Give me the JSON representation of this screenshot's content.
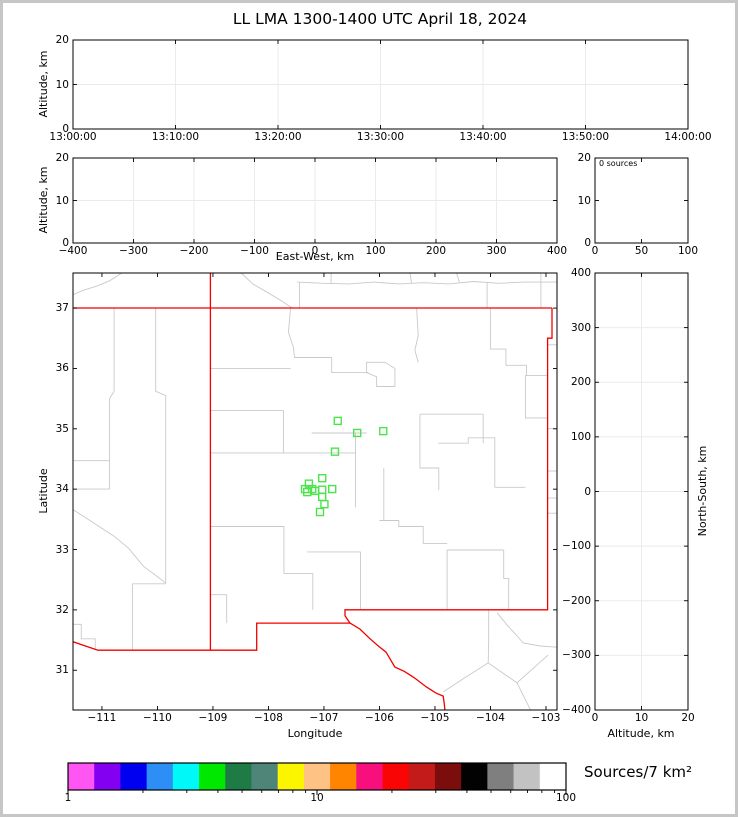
{
  "title": "LL LMA 1300-1400 UTC April 18, 2024",
  "panels": {
    "time_height": {
      "ylabel": "Altitude, km",
      "xtick_labels": [
        "13:00:00",
        "13:10:00",
        "13:20:00",
        "13:30:00",
        "13:40:00",
        "13:50:00",
        "14:00:00"
      ],
      "ytick_labels": [
        "0",
        "10",
        "20"
      ]
    },
    "ew_height": {
      "xlabel": "East-West, km",
      "ylabel": "Altitude, km",
      "xtick_labels": [
        "−400",
        "−300",
        "−200",
        "−100",
        "0",
        "100",
        "200",
        "300",
        "400"
      ],
      "ytick_labels": [
        "0",
        "10",
        "20"
      ]
    },
    "alt_histogram": {
      "annotation": "0 sources",
      "xtick_labels": [
        "0",
        "50",
        "100"
      ],
      "ytick_labels": [
        "0",
        "10",
        "20"
      ]
    },
    "map": {
      "xlabel": "Longitude",
      "ylabel": "Latitude",
      "xtick_labels": [
        "−111",
        "−110",
        "−109",
        "−108",
        "−107",
        "−106",
        "−105",
        "−104",
        "−103"
      ],
      "ytick_labels": [
        "31",
        "32",
        "33",
        "34",
        "35",
        "36",
        "37"
      ]
    },
    "ns_height": {
      "xlabel": "Altitude, km",
      "ylabel": "North-South, km",
      "xtick_labels": [
        "0",
        "10",
        "20"
      ],
      "ytick_labels": [
        "−400",
        "−300",
        "−200",
        "−100",
        "0",
        "100",
        "200",
        "300",
        "400"
      ]
    }
  },
  "colorbar": {
    "label": "Sources/7 km²",
    "scale": "log",
    "min": 1,
    "max": 100,
    "tick_labels": [
      "1",
      "10",
      "100"
    ],
    "segment_colors": [
      "#ff55f2",
      "#8400f0",
      "#0000f0",
      "#2d8ef5",
      "#00f8f8",
      "#00e800",
      "#1e7b46",
      "#4f8578",
      "#fbf500",
      "#ffc285",
      "#ff8400",
      "#f7107d",
      "#fa0505",
      "#c31a1a",
      "#7c0d0d",
      "#020202",
      "#7f7f7f",
      "#c2c2c2",
      "#ffffff"
    ]
  },
  "colors": {
    "state_border": "#f20000",
    "county_line": "#c9c9c9",
    "station_marker": "#4ce44c",
    "grid": "#ebebeb",
    "panel_frame": "#000000",
    "figure_border": "#c6c6c6"
  },
  "chart_data": [
    {
      "id": "time-height",
      "type": "scatter",
      "ylabel": "Altitude, km",
      "xlim": [
        "13:00:00",
        "14:00:00"
      ],
      "ylim": [
        0,
        20
      ],
      "points": []
    },
    {
      "id": "east-west-height",
      "type": "scatter",
      "xlabel": "East-West, km",
      "ylabel": "Altitude, km",
      "xlim": [
        -400,
        400
      ],
      "ylim": [
        0,
        20
      ],
      "points": []
    },
    {
      "id": "altitude-histogram",
      "type": "line",
      "annotation": "0 sources",
      "xlim": [
        0,
        100
      ],
      "ylim": [
        0,
        20
      ],
      "points": []
    },
    {
      "id": "plan-view-map",
      "type": "scatter",
      "xlabel": "Longitude",
      "ylabel": "Latitude",
      "xlim": [
        -111.52,
        -102.8
      ],
      "ylim": [
        30.34,
        37.58
      ],
      "marker": "open-square",
      "marker_color": "#4ce44c",
      "station_markers": [
        [
          -106.75,
          35.13
        ],
        [
          -106.4,
          34.93
        ],
        [
          -105.93,
          34.96
        ],
        [
          -106.8,
          34.62
        ],
        [
          -107.03,
          34.18
        ],
        [
          -107.27,
          34.09
        ],
        [
          -107.34,
          34.0
        ],
        [
          -107.21,
          34.0
        ],
        [
          -107.16,
          33.97
        ],
        [
          -107.03,
          33.99
        ],
        [
          -106.85,
          34.0
        ],
        [
          -107.3,
          33.95
        ],
        [
          -107.03,
          33.87
        ],
        [
          -106.99,
          33.75
        ],
        [
          -107.07,
          33.62
        ]
      ],
      "state_borders": [
        [
          [
            -111.52,
            37.0
          ],
          [
            -102.89,
            37.0
          ]
        ],
        [
          [
            -109.045,
            37.58
          ],
          [
            -109.045,
            31.33
          ]
        ],
        [
          [
            -102.89,
            37.0
          ],
          [
            -102.89,
            36.5
          ],
          [
            -102.97,
            36.5
          ],
          [
            -102.97,
            32.0
          ],
          [
            -106.62,
            32.0
          ],
          [
            -106.62,
            31.9
          ],
          [
            -106.53,
            31.78
          ],
          [
            -108.21,
            31.78
          ],
          [
            -108.21,
            31.33
          ],
          [
            -111.07,
            31.33
          ],
          [
            -111.52,
            31.47
          ]
        ],
        [
          [
            -106.53,
            31.78
          ],
          [
            -106.35,
            31.68
          ],
          [
            -106.18,
            31.53
          ],
          [
            -106.02,
            31.4
          ],
          [
            -105.88,
            31.3
          ],
          [
            -105.72,
            31.05
          ],
          [
            -105.55,
            30.98
          ],
          [
            -105.38,
            30.88
          ],
          [
            -105.15,
            30.72
          ],
          [
            -104.98,
            30.62
          ],
          [
            -104.85,
            30.57
          ],
          [
            -104.83,
            30.44
          ],
          [
            -104.82,
            30.34
          ]
        ]
      ],
      "county_lines": [
        [
          [
            -111.52,
            37.22
          ],
          [
            -111.32,
            37.3
          ],
          [
            -111.1,
            37.36
          ],
          [
            -110.86,
            37.45
          ],
          [
            -110.64,
            37.58
          ]
        ],
        [
          [
            -108.49,
            37.58
          ],
          [
            -108.28,
            37.4
          ],
          [
            -108.02,
            37.26
          ],
          [
            -107.8,
            37.14
          ],
          [
            -107.57,
            37.0
          ]
        ],
        [
          [
            -107.48,
            37.43
          ],
          [
            -107.0,
            37.41
          ],
          [
            -106.55,
            37.4
          ],
          [
            -106.1,
            37.43
          ],
          [
            -105.65,
            37.4
          ],
          [
            -105.2,
            37.42
          ],
          [
            -104.75,
            37.4
          ],
          [
            -104.3,
            37.44
          ],
          [
            -103.85,
            37.41
          ],
          [
            -103.4,
            37.43
          ],
          [
            -102.8,
            37.43
          ]
        ],
        [
          [
            -107.44,
            37.42
          ],
          [
            -107.44,
            37.0
          ]
        ],
        [
          [
            -106.87,
            37.58
          ],
          [
            -106.87,
            37.41
          ]
        ],
        [
          [
            -105.45,
            37.58
          ],
          [
            -105.42,
            37.41
          ]
        ],
        [
          [
            -104.61,
            37.58
          ],
          [
            -104.56,
            37.43
          ]
        ],
        [
          [
            -103.09,
            37.58
          ],
          [
            -103.09,
            37.0
          ]
        ],
        [
          [
            -104.06,
            37.42
          ],
          [
            -104.06,
            37.0
          ]
        ],
        [
          [
            -110.78,
            37.0
          ],
          [
            -110.78,
            35.62
          ],
          [
            -110.86,
            35.5
          ],
          [
            -110.86,
            34.0
          ]
        ],
        [
          [
            -111.52,
            34.0
          ],
          [
            -110.86,
            34.0
          ]
        ],
        [
          [
            -110.03,
            37.0
          ],
          [
            -110.03,
            35.62
          ],
          [
            -109.85,
            35.55
          ],
          [
            -109.85,
            32.44
          ]
        ],
        [
          [
            -111.52,
            33.66
          ],
          [
            -111.28,
            33.52
          ],
          [
            -111.05,
            33.38
          ],
          [
            -110.78,
            33.22
          ],
          [
            -110.52,
            33.02
          ],
          [
            -110.25,
            32.72
          ],
          [
            -110.0,
            32.55
          ],
          [
            -109.85,
            32.44
          ]
        ],
        [
          [
            -110.45,
            32.43
          ],
          [
            -110.45,
            31.33
          ]
        ],
        [
          [
            -110.45,
            32.43
          ],
          [
            -109.85,
            32.43
          ]
        ],
        [
          [
            -111.52,
            34.47
          ],
          [
            -110.86,
            34.47
          ]
        ],
        [
          [
            -111.52,
            31.76
          ],
          [
            -111.37,
            31.76
          ],
          [
            -111.37,
            31.52
          ],
          [
            -111.12,
            31.52
          ],
          [
            -111.12,
            31.33
          ]
        ],
        [
          [
            -109.04,
            36.0
          ],
          [
            -107.6,
            36.0
          ]
        ],
        [
          [
            -107.6,
            37.0
          ],
          [
            -107.64,
            36.6
          ],
          [
            -107.55,
            36.35
          ],
          [
            -107.53,
            36.18
          ],
          [
            -106.86,
            36.18
          ]
        ],
        [
          [
            -106.86,
            36.18
          ],
          [
            -106.86,
            35.93
          ],
          [
            -106.2,
            35.93
          ]
        ],
        [
          [
            -105.33,
            37.0
          ],
          [
            -105.3,
            36.55
          ],
          [
            -105.36,
            36.3
          ],
          [
            -105.3,
            36.1
          ]
        ],
        [
          [
            -104.0,
            37.0
          ],
          [
            -104.0,
            36.32
          ],
          [
            -103.72,
            36.32
          ],
          [
            -103.72,
            36.05
          ],
          [
            -103.35,
            36.05
          ],
          [
            -103.35,
            35.88
          ],
          [
            -102.97,
            35.88
          ]
        ],
        [
          [
            -102.97,
            36.39
          ],
          [
            -102.8,
            36.39
          ]
        ],
        [
          [
            -109.04,
            35.3
          ],
          [
            -107.73,
            35.3
          ],
          [
            -107.73,
            34.6
          ]
        ],
        [
          [
            -109.04,
            34.6
          ],
          [
            -106.43,
            34.6
          ]
        ],
        [
          [
            -107.22,
            34.93
          ],
          [
            -106.23,
            34.93
          ]
        ],
        [
          [
            -106.43,
            34.93
          ],
          [
            -106.43,
            33.7
          ]
        ],
        [
          [
            -106.23,
            35.93
          ],
          [
            -106.23,
            36.1
          ],
          [
            -105.9,
            36.1
          ],
          [
            -105.72,
            36.0
          ],
          [
            -105.72,
            35.7
          ],
          [
            -106.05,
            35.7
          ],
          [
            -106.05,
            35.86
          ],
          [
            -106.23,
            35.93
          ]
        ],
        [
          [
            -105.27,
            35.24
          ],
          [
            -104.13,
            35.24
          ]
        ],
        [
          [
            -105.27,
            35.24
          ],
          [
            -105.27,
            34.35
          ],
          [
            -104.93,
            34.35
          ],
          [
            -104.93,
            33.98
          ]
        ],
        [
          [
            -104.94,
            34.76
          ],
          [
            -104.4,
            34.76
          ],
          [
            -104.4,
            34.85
          ],
          [
            -103.92,
            34.85
          ],
          [
            -103.92,
            34.03
          ]
        ],
        [
          [
            -104.13,
            35.24
          ],
          [
            -104.13,
            34.76
          ]
        ],
        [
          [
            -103.92,
            34.03
          ],
          [
            -103.37,
            34.03
          ]
        ],
        [
          [
            -103.37,
            35.89
          ],
          [
            -103.37,
            35.18
          ],
          [
            -102.97,
            35.18
          ]
        ],
        [
          [
            -105.92,
            34.35
          ],
          [
            -105.92,
            33.48
          ]
        ],
        [
          [
            -106.0,
            33.48
          ],
          [
            -105.65,
            33.48
          ],
          [
            -105.65,
            33.38
          ],
          [
            -105.21,
            33.38
          ],
          [
            -105.21,
            33.1
          ],
          [
            -104.78,
            33.1
          ]
        ],
        [
          [
            -104.78,
            32.99
          ],
          [
            -104.78,
            32.0
          ]
        ],
        [
          [
            -104.78,
            32.99
          ],
          [
            -103.76,
            32.99
          ]
        ],
        [
          [
            -103.76,
            32.99
          ],
          [
            -103.76,
            32.52
          ],
          [
            -103.67,
            32.52
          ],
          [
            -103.67,
            32.0
          ]
        ],
        [
          [
            -106.34,
            32.96
          ],
          [
            -106.34,
            32.0
          ]
        ],
        [
          [
            -107.3,
            32.96
          ],
          [
            -106.34,
            32.96
          ]
        ],
        [
          [
            -109.04,
            33.38
          ],
          [
            -107.72,
            33.38
          ],
          [
            -107.72,
            32.6
          ]
        ],
        [
          [
            -107.72,
            32.6
          ],
          [
            -107.2,
            32.6
          ],
          [
            -107.2,
            32.0
          ]
        ],
        [
          [
            -108.75,
            32.25
          ],
          [
            -108.75,
            31.78
          ]
        ],
        [
          [
            -109.04,
            32.25
          ],
          [
            -108.75,
            32.25
          ]
        ],
        [
          [
            -102.97,
            35.0
          ],
          [
            -102.8,
            35.0
          ]
        ],
        [
          [
            -102.97,
            34.3
          ],
          [
            -102.8,
            34.3
          ]
        ],
        [
          [
            -102.97,
            33.85
          ],
          [
            -102.8,
            33.85
          ]
        ],
        [
          [
            -102.97,
            33.6
          ],
          [
            -102.8,
            33.6
          ]
        ],
        [
          [
            -103.88,
            31.95
          ],
          [
            -103.7,
            31.75
          ],
          [
            -103.5,
            31.55
          ],
          [
            -103.41,
            31.45
          ],
          [
            -103.1,
            31.4
          ],
          [
            -102.8,
            31.38
          ]
        ],
        [
          [
            -104.03,
            32.0
          ],
          [
            -104.03,
            31.5
          ],
          [
            -104.04,
            31.12
          ]
        ],
        [
          [
            -104.04,
            31.12
          ],
          [
            -104.45,
            30.88
          ],
          [
            -104.85,
            30.64
          ]
        ],
        [
          [
            -104.04,
            31.12
          ],
          [
            -103.52,
            30.79
          ],
          [
            -102.96,
            31.25
          ]
        ],
        [
          [
            -103.52,
            30.79
          ],
          [
            -103.32,
            30.42
          ],
          [
            -103.28,
            30.34
          ]
        ]
      ]
    },
    {
      "id": "north-south-height",
      "type": "scatter",
      "xlabel": "Altitude, km",
      "ylabel": "North-South, km",
      "xlim": [
        0,
        20
      ],
      "ylim": [
        -400,
        400
      ],
      "points": []
    }
  ]
}
